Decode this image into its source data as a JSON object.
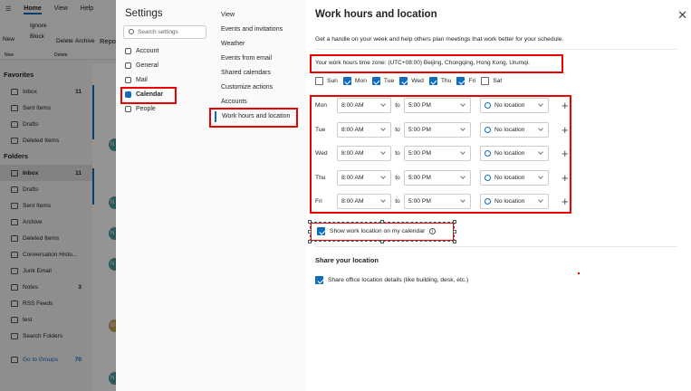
{
  "app": {
    "tabs": [
      "Home",
      "View",
      "Help"
    ],
    "ribbon": {
      "new": "New",
      "ignore": "Ignore",
      "block": "Block",
      "delete": "Delete",
      "archive": "Archive",
      "report": "Repo",
      "group_new": "New",
      "group_delete": "Delete"
    },
    "favorites_label": "Favorites",
    "favorites": [
      {
        "label": "Inbox",
        "count": "11"
      },
      {
        "label": "Sent Items"
      },
      {
        "label": "Drafts"
      },
      {
        "label": "Deleted Items"
      }
    ],
    "folders_label": "Folders",
    "folders": [
      {
        "label": "Inbox",
        "count": "11"
      },
      {
        "label": "Drafts"
      },
      {
        "label": "Sent Items"
      },
      {
        "label": "Archive"
      },
      {
        "label": "Deleted Items"
      },
      {
        "label": "Conversation Histo..."
      },
      {
        "label": "Junk Email"
      },
      {
        "label": "Notes",
        "count": "3"
      },
      {
        "label": "RSS Feeds"
      },
      {
        "label": "test"
      },
      {
        "label": "Search Folders"
      }
    ],
    "groups": {
      "label": "Go to Groups",
      "count": "70"
    },
    "avatars": [
      "N",
      "N",
      "N",
      "N",
      "M",
      "N"
    ]
  },
  "settings": {
    "title": "Settings",
    "search_placeholder": "Search settings",
    "nav": [
      "Account",
      "General",
      "Mail",
      "Calendar",
      "People"
    ],
    "subnav": [
      "View",
      "Events and invitations",
      "Weather",
      "Events from email",
      "Shared calendars",
      "Customize actions",
      "Accounts",
      "Work hours and location"
    ]
  },
  "main": {
    "title": "Work hours and location",
    "description": "Get a handle on your week and help others plan meetings that work better for your schedule.",
    "timezone": "Your work hours time zone: (UTC+08:00) Beijing, Chongqing, Hong Kong, Urumqi.",
    "days": [
      {
        "label": "Sun",
        "checked": false
      },
      {
        "label": "Mon",
        "checked": true
      },
      {
        "label": "Tue",
        "checked": true
      },
      {
        "label": "Wed",
        "checked": true
      },
      {
        "label": "Thu",
        "checked": true
      },
      {
        "label": "Fri",
        "checked": true
      },
      {
        "label": "Sat",
        "checked": false
      }
    ],
    "to_label": "to",
    "schedule": [
      {
        "day": "Mon",
        "start": "8:00 AM",
        "end": "5:00 PM",
        "location": "No location"
      },
      {
        "day": "Tue",
        "start": "8:00 AM",
        "end": "5:00 PM",
        "location": "No location"
      },
      {
        "day": "Wed",
        "start": "8:00 AM",
        "end": "5:00 PM",
        "location": "No location"
      },
      {
        "day": "Thu",
        "start": "8:00 AM",
        "end": "5:00 PM",
        "location": "No location"
      },
      {
        "day": "Fri",
        "start": "8:00 AM",
        "end": "5:00 PM",
        "location": "No location"
      }
    ],
    "show_location": {
      "label": "Show work location on my calendar",
      "checked": true
    },
    "share_heading": "Share your location",
    "share_office": {
      "label": "Share office location details (like building, desk, etc.)",
      "checked": true
    }
  },
  "colors": {
    "accent": "#0f6cbd",
    "highlight": "#e00000"
  }
}
